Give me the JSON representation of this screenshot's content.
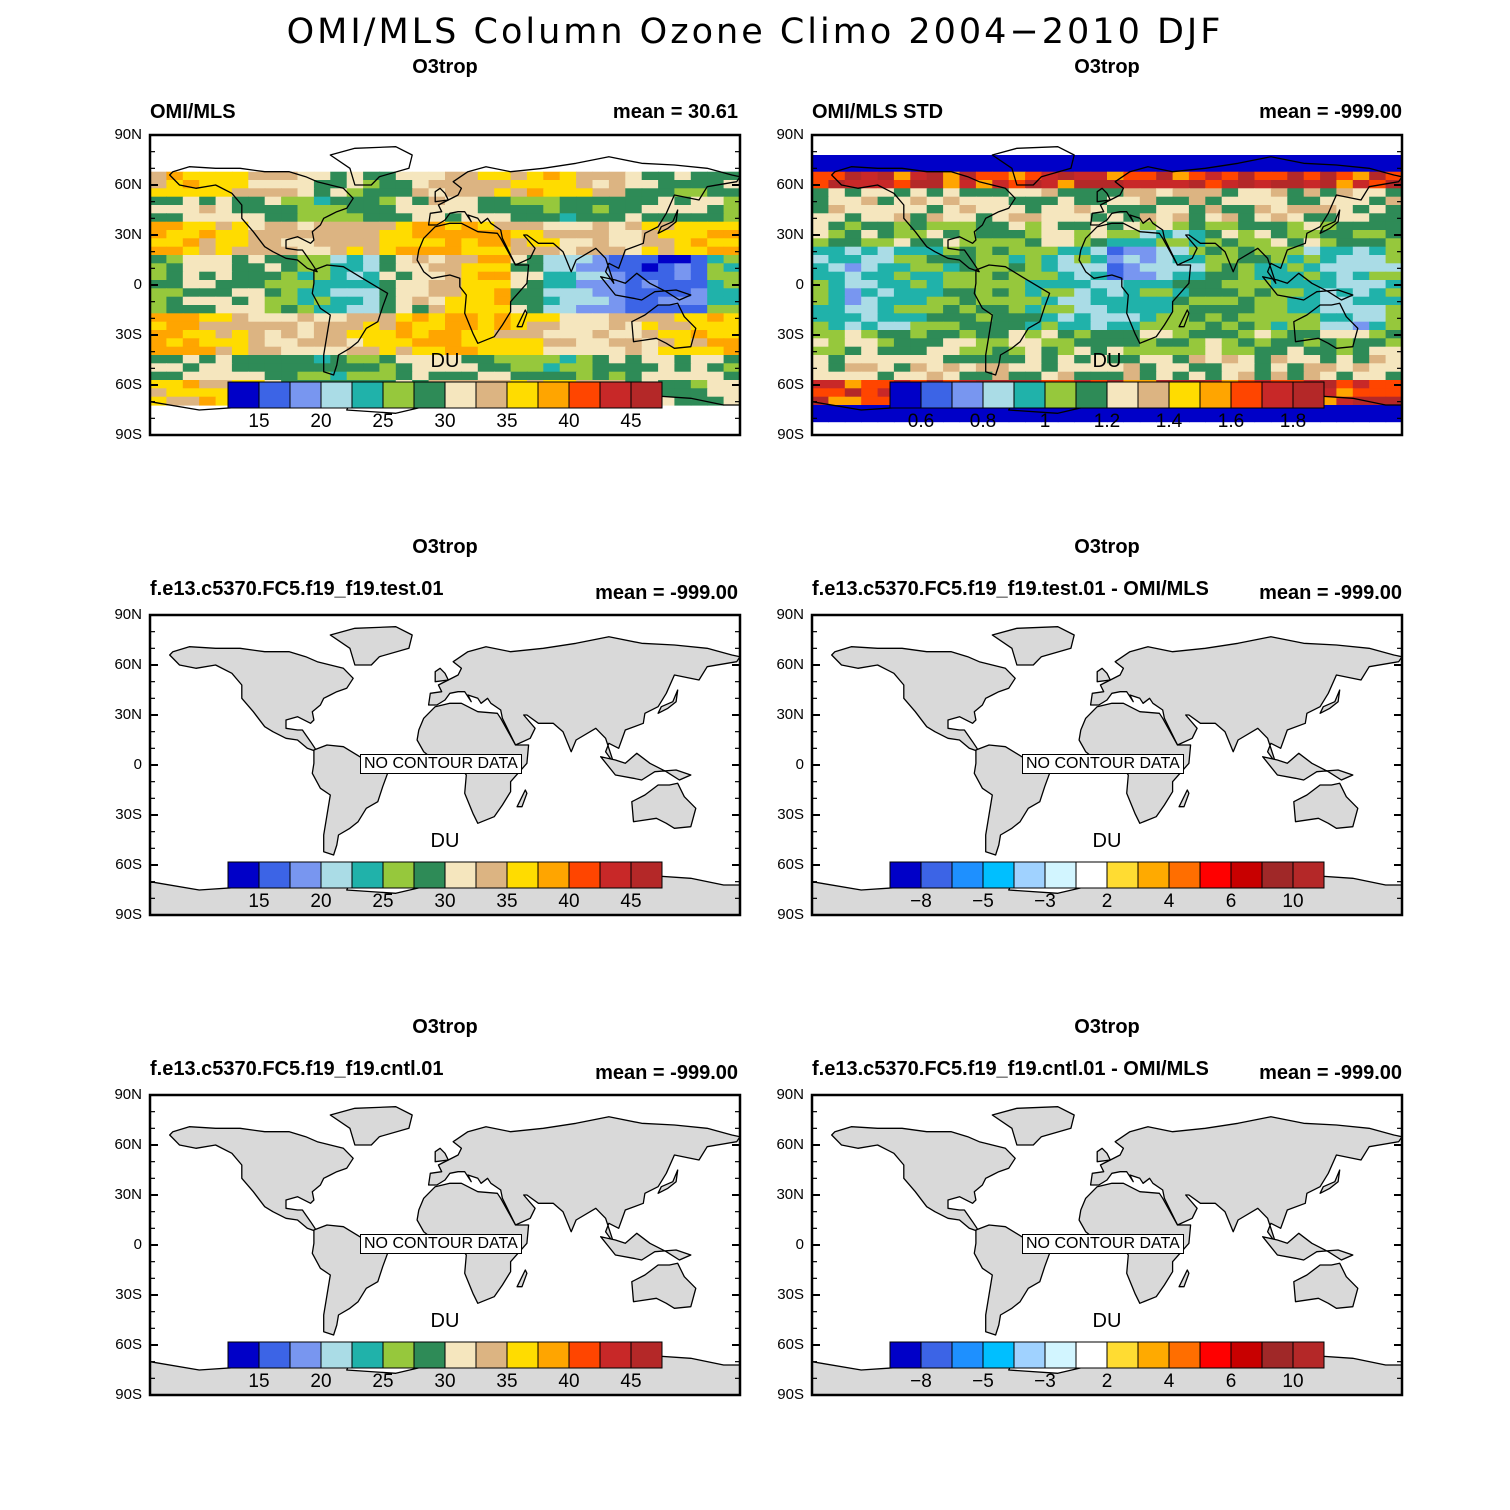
{
  "figure_title": "OMI/MLS Column Ozone Climo 2004−2010 DJF",
  "lat_ticks": [
    "90N",
    "60N",
    "30N",
    "0",
    "30S",
    "60S",
    "90S"
  ],
  "colors": {
    "abs_scale": [
      "#0000c8",
      "#3c64e6",
      "#7896f0",
      "#aadce6",
      "#20b2aa",
      "#96c83c",
      "#2e8b57",
      "#f5e6be",
      "#dcb482",
      "#ffdc00",
      "#ffa500",
      "#ff4500",
      "#c82828",
      "#b42828"
    ],
    "std_scale": [
      "#0000c8",
      "#3c64e6",
      "#7896f0",
      "#aadce6",
      "#20b2aa",
      "#96c83c",
      "#2e8b57",
      "#f5e6be",
      "#dcb482",
      "#ffdc00",
      "#ffa500",
      "#ff4500",
      "#c82828",
      "#b42828"
    ],
    "diff_scale": [
      "#0000c8",
      "#3c64e6",
      "#1e90ff",
      "#00bfff",
      "#a0d2ff",
      "#d2f5ff",
      "#ffffff",
      "#ffdc32",
      "#ffaa00",
      "#ff6e00",
      "#ff0000",
      "#c80000",
      "#a02828",
      "#b42828"
    ],
    "land": "#d9d9d9"
  },
  "panels": [
    {
      "title": "O3trop",
      "left_label": "OMI/MLS",
      "right_label": "mean =  30.61",
      "units": "DU",
      "scale": "abs_scale",
      "ticks": [
        "15",
        "20",
        "25",
        "30",
        "35",
        "40",
        "45"
      ],
      "has_data": true,
      "no_data_text": ""
    },
    {
      "title": "O3trop",
      "left_label": "OMI/MLS STD",
      "right_label": "mean = -999.00",
      "units": "DU",
      "scale": "std_scale",
      "ticks": [
        "0.6",
        "0.8",
        "1",
        "1.2",
        "1.4",
        "1.6",
        "1.8"
      ],
      "has_data": true,
      "no_data_text": ""
    },
    {
      "title": "O3trop",
      "left_label": "f.e13.c5370.FC5.f19_f19.test.01",
      "right_label": "mean = -999.00",
      "units": "DU",
      "scale": "abs_scale",
      "ticks": [
        "15",
        "20",
        "25",
        "30",
        "35",
        "40",
        "45"
      ],
      "has_data": false,
      "no_data_text": "NO CONTOUR DATA"
    },
    {
      "title": "O3trop",
      "left_label": "f.e13.c5370.FC5.f19_f19.test.01 - OMI/MLS",
      "right_label": "mean = -999.00",
      "units": "DU",
      "scale": "diff_scale",
      "ticks": [
        "−8",
        "−5",
        "−3",
        "2",
        "4",
        "6",
        "10"
      ],
      "has_data": false,
      "no_data_text": "NO CONTOUR DATA"
    },
    {
      "title": "O3trop",
      "left_label": "f.e13.c5370.FC5.f19_f19.cntl.01",
      "right_label": "mean = -999.00",
      "units": "DU",
      "scale": "abs_scale",
      "ticks": [
        "15",
        "20",
        "25",
        "30",
        "35",
        "40",
        "45"
      ],
      "has_data": false,
      "no_data_text": "NO CONTOUR DATA"
    },
    {
      "title": "O3trop",
      "left_label": "f.e13.c5370.FC5.f19_f19.cntl.01 - OMI/MLS",
      "right_label": "mean = -999.00",
      "units": "DU",
      "scale": "diff_scale",
      "ticks": [
        "−8",
        "−5",
        "−3",
        "2",
        "4",
        "6",
        "10"
      ],
      "has_data": false,
      "no_data_text": "NO CONTOUR DATA"
    }
  ]
}
